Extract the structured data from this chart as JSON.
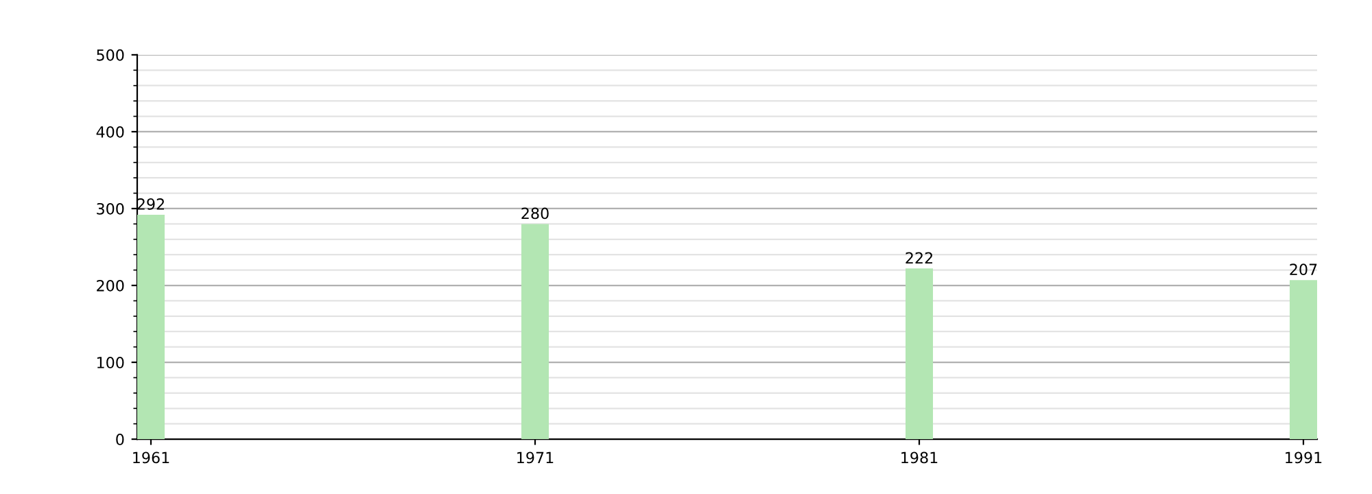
{
  "chart_data": {
    "type": "bar",
    "categories": [
      "1961",
      "1971",
      "1981",
      "1991"
    ],
    "values": [
      292,
      280,
      222,
      207
    ],
    "color": "#b3e6b3",
    "ylim": [
      0,
      500
    ],
    "yticks": [
      0,
      100,
      200,
      300,
      400,
      500
    ],
    "grid": "y",
    "data_labels": true
  }
}
